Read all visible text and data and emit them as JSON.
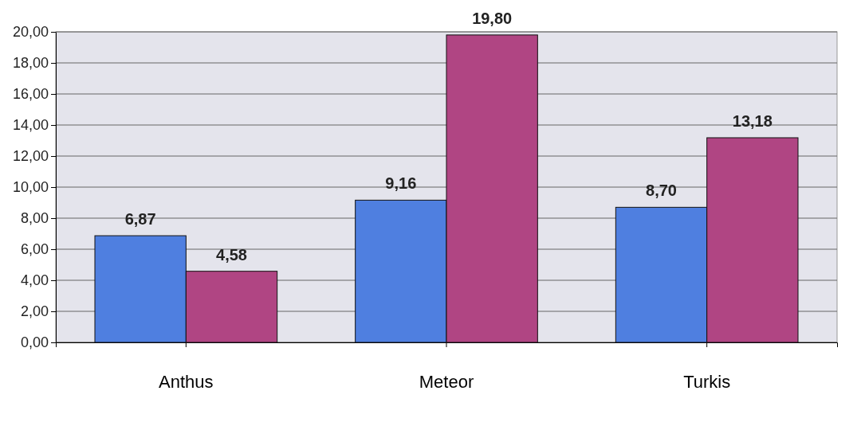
{
  "chart_data": {
    "type": "bar",
    "categories": [
      "Anthus",
      "Meteor",
      "Turkis"
    ],
    "series": [
      {
        "color": "#4f7fe0",
        "values": [
          6.87,
          9.16,
          8.7
        ],
        "value_labels": [
          "6,87",
          "9,16",
          "8,70"
        ]
      },
      {
        "color": "#b04583",
        "values": [
          4.58,
          19.8,
          13.18
        ],
        "value_labels": [
          "4,58",
          "19,80",
          "13,18"
        ]
      }
    ],
    "ylim": [
      0,
      20
    ],
    "yticks": [
      {
        "value": 0,
        "label": "0,00"
      },
      {
        "value": 2,
        "label": "2,00"
      },
      {
        "value": 4,
        "label": "4,00"
      },
      {
        "value": 6,
        "label": "6,00"
      },
      {
        "value": 8,
        "label": "8,00"
      },
      {
        "value": 10,
        "label": "10,00"
      },
      {
        "value": 12,
        "label": "12,00"
      },
      {
        "value": 14,
        "label": "14,00"
      },
      {
        "value": 16,
        "label": "16,00"
      },
      {
        "value": 18,
        "label": "18,00"
      },
      {
        "value": 20,
        "label": "20,00"
      }
    ],
    "grid": "y"
  }
}
